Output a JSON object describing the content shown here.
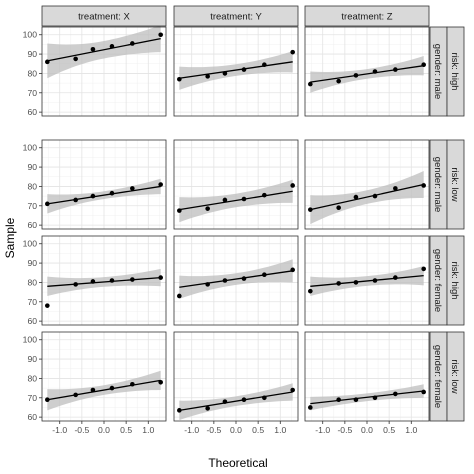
{
  "chart_data": {
    "type": "scatter",
    "xlabel": "Theoretical",
    "ylabel": "Sample",
    "xlim": [
      -1.4,
      1.4
    ],
    "ylim": [
      58,
      104
    ],
    "x_ticks": [
      -1.0,
      -0.5,
      0.0,
      0.5,
      1.0
    ],
    "x_tick_labels": [
      "-1.0",
      "-0.5",
      "0.0",
      "0.5",
      "1.0"
    ],
    "y_ticks": [
      60,
      70,
      80,
      90,
      100
    ],
    "y_tick_labels": [
      "60",
      "70",
      "80",
      "90",
      "100"
    ],
    "grid": true,
    "column_strips": [
      "treatment: X",
      "treatment: Y",
      "treatment: Z"
    ],
    "row_strips": [
      [
        "gender: male",
        "risk: high"
      ],
      [
        "gender: male",
        "risk: low"
      ],
      [
        "gender: female",
        "risk: high"
      ],
      [
        "gender: female",
        "risk: low"
      ]
    ],
    "panels": [
      {
        "row": 0,
        "col": 0,
        "x": [
          -1.28,
          -0.64,
          -0.25,
          0.18,
          0.64,
          1.28
        ],
        "y": [
          86.0,
          87.5,
          92.5,
          94.0,
          95.5,
          100.0
        ],
        "fit": [
          -1.28,
          86.5,
          1.28,
          98.0
        ],
        "ci": [
          9.0,
          4.5,
          7.0
        ]
      },
      {
        "row": 0,
        "col": 1,
        "x": [
          -1.28,
          -0.64,
          -0.25,
          0.18,
          0.64,
          1.28
        ],
        "y": [
          77.0,
          78.5,
          80.0,
          82.0,
          84.5,
          91.0
        ],
        "fit": [
          -1.28,
          77.5,
          1.28,
          86.0
        ],
        "ci": [
          6.0,
          3.0,
          5.5
        ]
      },
      {
        "row": 0,
        "col": 2,
        "x": [
          -1.28,
          -0.64,
          -0.25,
          0.18,
          0.64,
          1.28
        ],
        "y": [
          74.5,
          76.0,
          79.0,
          81.0,
          82.0,
          84.5
        ],
        "fit": [
          -1.28,
          75.5,
          1.28,
          84.0
        ],
        "ci": [
          5.5,
          2.5,
          5.0
        ]
      },
      {
        "row": 1,
        "col": 0,
        "x": [
          -1.28,
          -0.64,
          -0.25,
          0.18,
          0.64,
          1.28
        ],
        "y": [
          71.0,
          73.0,
          75.0,
          76.5,
          79.0,
          81.0
        ],
        "fit": [
          -1.28,
          71.0,
          1.28,
          80.0
        ],
        "ci": [
          5.0,
          2.0,
          4.0
        ]
      },
      {
        "row": 1,
        "col": 1,
        "x": [
          -1.28,
          -0.64,
          -0.25,
          0.18,
          0.64,
          1.28
        ],
        "y": [
          67.5,
          68.5,
          73.0,
          73.5,
          75.5,
          80.5
        ],
        "fit": [
          -1.28,
          68.0,
          1.28,
          77.5
        ],
        "ci": [
          6.5,
          3.5,
          6.0
        ]
      },
      {
        "row": 1,
        "col": 2,
        "x": [
          -1.28,
          -0.64,
          -0.25,
          0.18,
          0.64,
          1.28
        ],
        "y": [
          68.0,
          69.0,
          74.5,
          75.0,
          79.0,
          80.5
        ],
        "fit": [
          -1.28,
          68.0,
          1.28,
          81.0
        ],
        "ci": [
          7.5,
          3.5,
          7.0
        ]
      },
      {
        "row": 2,
        "col": 0,
        "x": [
          -1.28,
          -0.64,
          -0.25,
          0.18,
          0.64,
          1.28
        ],
        "y": [
          68.0,
          79.0,
          80.5,
          81.0,
          81.5,
          82.5
        ],
        "fit": [
          -1.28,
          78.0,
          1.28,
          82.5
        ],
        "ci": [
          5.0,
          2.5,
          4.5
        ]
      },
      {
        "row": 2,
        "col": 1,
        "x": [
          -1.28,
          -0.64,
          -0.25,
          0.18,
          0.64,
          1.28
        ],
        "y": [
          73.0,
          79.0,
          81.0,
          82.0,
          84.0,
          86.5
        ],
        "fit": [
          -1.28,
          77.5,
          1.28,
          86.0
        ],
        "ci": [
          6.0,
          3.0,
          6.0
        ]
      },
      {
        "row": 2,
        "col": 2,
        "x": [
          -1.28,
          -0.64,
          -0.25,
          0.18,
          0.64,
          1.28
        ],
        "y": [
          75.5,
          79.5,
          80.0,
          81.0,
          82.5,
          87.0
        ],
        "fit": [
          -1.28,
          78.0,
          1.28,
          83.5
        ],
        "ci": [
          5.0,
          2.5,
          5.0
        ]
      },
      {
        "row": 3,
        "col": 0,
        "x": [
          -1.28,
          -0.64,
          -0.25,
          0.18,
          0.64,
          1.28
        ],
        "y": [
          69.0,
          71.5,
          74.0,
          75.0,
          77.0,
          78.0
        ],
        "fit": [
          -1.28,
          69.0,
          1.28,
          79.0
        ],
        "ci": [
          5.5,
          2.5,
          5.0
        ]
      },
      {
        "row": 3,
        "col": 1,
        "x": [
          -1.28,
          -0.64,
          -0.25,
          0.18,
          0.64,
          1.28
        ],
        "y": [
          63.5,
          64.5,
          68.0,
          69.0,
          70.0,
          74.0
        ],
        "fit": [
          -1.28,
          63.5,
          1.28,
          73.0
        ],
        "ci": [
          5.0,
          2.5,
          4.5
        ]
      },
      {
        "row": 3,
        "col": 2,
        "x": [
          -1.28,
          -0.64,
          -0.25,
          0.18,
          0.64,
          1.28
        ],
        "y": [
          65.0,
          69.0,
          69.0,
          70.0,
          72.0,
          73.0
        ],
        "fit": [
          -1.28,
          67.0,
          1.28,
          73.5
        ],
        "ci": [
          3.5,
          2.0,
          3.5
        ]
      }
    ]
  }
}
